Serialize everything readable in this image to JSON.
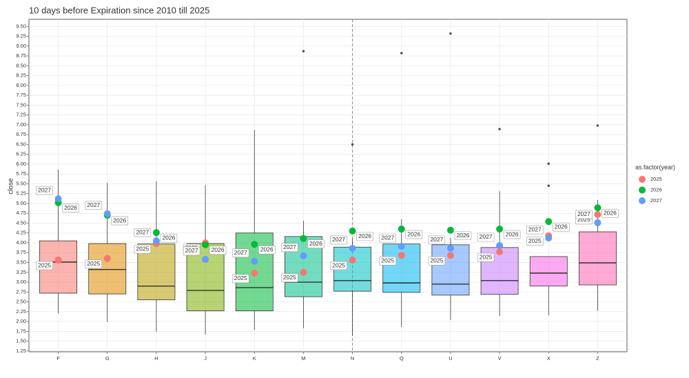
{
  "chart_data": {
    "type": "box",
    "title": "10 days before Expiration since 2010 till 2025",
    "y_label": "close",
    "legend_title": "as.factor(year)",
    "categories": [
      "F",
      "G",
      "H",
      "J",
      "K",
      "M",
      "N",
      "Q",
      "U",
      "V",
      "X",
      "Z"
    ],
    "box_colors": [
      "#F8766D",
      "#DE8C00",
      "#B79F00",
      "#7CAE00",
      "#00BA38",
      "#00C08B",
      "#00BFC4",
      "#00B4F0",
      "#619CFF",
      "#C77CFF",
      "#F564E3",
      "#FF64B0"
    ],
    "boxes": [
      {
        "min": 2.21,
        "q1": 2.72,
        "median": 3.51,
        "q3": 4.05,
        "max": 5.86,
        "outliers": []
      },
      {
        "min": 1.99,
        "q1": 2.7,
        "median": 3.32,
        "q3": 3.98,
        "max": 5.52,
        "outliers": []
      },
      {
        "min": 1.74,
        "q1": 2.55,
        "median": 2.9,
        "q3": 3.97,
        "max": 5.56,
        "outliers": []
      },
      {
        "min": 1.67,
        "q1": 2.27,
        "median": 2.79,
        "q3": 3.98,
        "max": 5.47,
        "outliers": []
      },
      {
        "min": 1.79,
        "q1": 2.27,
        "median": 2.86,
        "q3": 4.25,
        "max": 6.87,
        "outliers": []
      },
      {
        "min": 1.83,
        "q1": 2.63,
        "median": 3.0,
        "q3": 4.16,
        "max": 4.56,
        "outliers": [
          8.87
        ]
      },
      {
        "min": 1.64,
        "q1": 2.77,
        "median": 3.04,
        "q3": 3.89,
        "max": 4.1,
        "outliers": [
          6.5
        ]
      },
      {
        "min": 1.86,
        "q1": 2.74,
        "median": 2.98,
        "q3": 3.97,
        "max": 4.6,
        "outliers": [
          8.82
        ]
      },
      {
        "min": 2.04,
        "q1": 2.67,
        "median": 2.95,
        "q3": 3.95,
        "max": 4.12,
        "outliers": [
          9.32
        ]
      },
      {
        "min": 2.14,
        "q1": 2.69,
        "median": 3.04,
        "q3": 3.88,
        "max": 5.31,
        "outliers": [
          6.89
        ]
      },
      {
        "min": 2.16,
        "q1": 2.9,
        "median": 3.23,
        "q3": 3.65,
        "max": 3.65,
        "outliers": [
          5.45,
          6.01
        ]
      },
      {
        "min": 2.27,
        "q1": 2.93,
        "median": 3.49,
        "q3": 4.28,
        "max": 5.09,
        "outliers": [
          6.98
        ]
      }
    ],
    "series": [
      {
        "name": "2025",
        "color": "#F8766D",
        "values": [
          3.56,
          3.6,
          3.98,
          4.0,
          3.23,
          3.25,
          3.56,
          3.68,
          3.68,
          3.77,
          4.18,
          4.72
        ]
      },
      {
        "name": "2026",
        "color": "#00BA38",
        "values": [
          5.02,
          4.7,
          4.26,
          3.95,
          3.96,
          4.11,
          4.3,
          4.35,
          4.32,
          4.35,
          4.54,
          4.89
        ]
      },
      {
        "name": "2027",
        "color": "#619CFF",
        "values": [
          5.12,
          4.74,
          4.05,
          3.58,
          3.53,
          3.67,
          3.86,
          3.91,
          3.86,
          3.93,
          4.12,
          4.51
        ]
      }
    ],
    "vline_category": "N",
    "ylim": [
      1.23,
      9.68
    ],
    "yticks": [
      {
        "value": 1.25,
        "label": "1.25"
      },
      {
        "value": 1.5,
        "label": "1.50"
      },
      {
        "value": 1.75,
        "label": "1.75"
      },
      {
        "value": 2,
        "label": "2.00"
      },
      {
        "value": 2.25,
        "label": "2.25"
      },
      {
        "value": 2.5,
        "label": "2.50"
      },
      {
        "value": 2.75,
        "label": "2.75"
      },
      {
        "value": 3,
        "label": "3.00"
      },
      {
        "value": 3.25,
        "label": "3.25"
      },
      {
        "value": 3.5,
        "label": "3.50"
      },
      {
        "value": 3.75,
        "label": "3.75"
      },
      {
        "value": 4,
        "label": "4.00"
      },
      {
        "value": 4.25,
        "label": "4.25"
      },
      {
        "value": 4.5,
        "label": "4.50"
      },
      {
        "value": 4.75,
        "label": "4.75"
      },
      {
        "value": 5,
        "label": "5.00"
      },
      {
        "value": 5.25,
        "label": "5.25"
      },
      {
        "value": 5.5,
        "label": "5.50"
      },
      {
        "value": 5.75,
        "label": "5.75"
      },
      {
        "value": 6,
        "label": "6.00"
      },
      {
        "value": 6.25,
        "label": "6.25"
      },
      {
        "value": 6.5,
        "label": "6.50"
      },
      {
        "value": 6.75,
        "label": "6.75"
      },
      {
        "value": 7,
        "label": "7.00"
      },
      {
        "value": 7.25,
        "label": "7.25"
      },
      {
        "value": 7.5,
        "label": "7.50"
      },
      {
        "value": 7.75,
        "label": "7.75"
      },
      {
        "value": 8,
        "label": "8.00"
      },
      {
        "value": 8.25,
        "label": "8.25"
      },
      {
        "value": 8.5,
        "label": "8.50"
      },
      {
        "value": 8.75,
        "label": "8.75"
      },
      {
        "value": 9,
        "label": "9.00"
      },
      {
        "value": 9.25,
        "label": "9.25"
      },
      {
        "value": 9.5,
        "label": "9.50"
      }
    ],
    "grid": true
  }
}
